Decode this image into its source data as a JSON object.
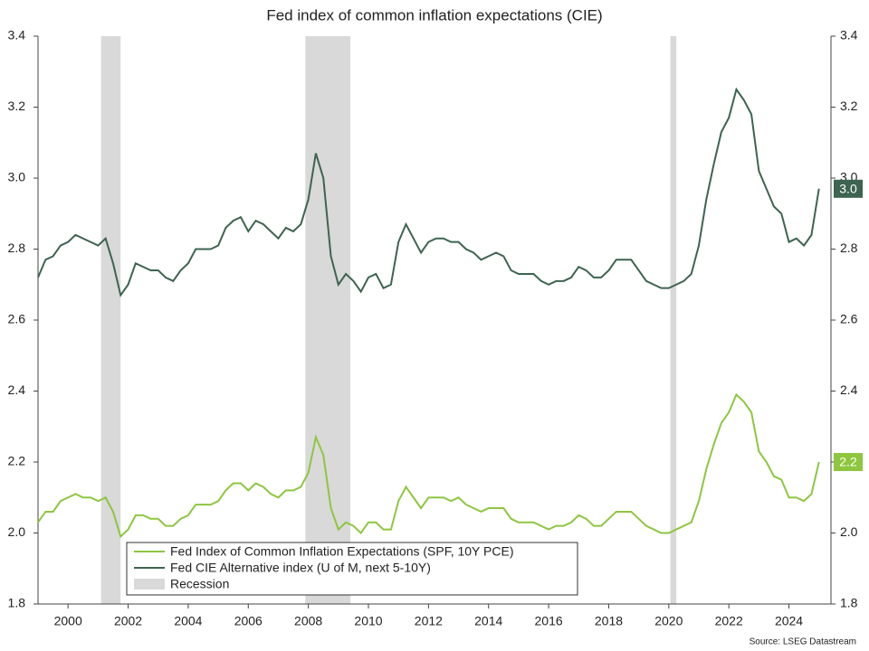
{
  "chart_data": {
    "type": "line",
    "title": "Fed index of common inflation expectations (CIE)",
    "source": "Source: LSEG Datastream",
    "x": [
      1999,
      1999.25,
      1999.5,
      1999.75,
      2000,
      2000.25,
      2000.5,
      2000.75,
      2001,
      2001.25,
      2001.5,
      2001.75,
      2002,
      2002.25,
      2002.5,
      2002.75,
      2003,
      2003.25,
      2003.5,
      2003.75,
      2004,
      2004.25,
      2004.5,
      2004.75,
      2005,
      2005.25,
      2005.5,
      2005.75,
      2006,
      2006.25,
      2006.5,
      2006.75,
      2007,
      2007.25,
      2007.5,
      2007.75,
      2008,
      2008.25,
      2008.5,
      2008.75,
      2009,
      2009.25,
      2009.5,
      2009.75,
      2010,
      2010.25,
      2010.5,
      2010.75,
      2011,
      2011.25,
      2011.5,
      2011.75,
      2012,
      2012.25,
      2012.5,
      2012.75,
      2013,
      2013.25,
      2013.5,
      2013.75,
      2014,
      2014.25,
      2014.5,
      2014.75,
      2015,
      2015.25,
      2015.5,
      2015.75,
      2016,
      2016.25,
      2016.5,
      2016.75,
      2017,
      2017.25,
      2017.5,
      2017.75,
      2018,
      2018.25,
      2018.5,
      2018.75,
      2019,
      2019.25,
      2019.5,
      2019.75,
      2020,
      2020.25,
      2020.5,
      2020.75,
      2021,
      2021.25,
      2021.5,
      2021.75,
      2022,
      2022.25,
      2022.5,
      2022.75,
      2023,
      2023.25,
      2023.5,
      2023.75,
      2024,
      2024.25,
      2024.5,
      2024.75,
      2025
    ],
    "series": [
      {
        "name": "Fed Index of Common Inflation Expectations (SPF, 10Y PCE)",
        "color": "#8dc63f",
        "end_label": "2.2",
        "values": [
          2.03,
          2.06,
          2.06,
          2.09,
          2.1,
          2.11,
          2.1,
          2.1,
          2.09,
          2.1,
          2.06,
          1.99,
          2.01,
          2.05,
          2.05,
          2.04,
          2.04,
          2.02,
          2.02,
          2.04,
          2.05,
          2.08,
          2.08,
          2.08,
          2.09,
          2.12,
          2.14,
          2.14,
          2.12,
          2.14,
          2.13,
          2.11,
          2.1,
          2.12,
          2.12,
          2.13,
          2.17,
          2.27,
          2.22,
          2.07,
          2.01,
          2.03,
          2.02,
          2.0,
          2.03,
          2.03,
          2.01,
          2.01,
          2.09,
          2.13,
          2.1,
          2.07,
          2.1,
          2.1,
          2.1,
          2.09,
          2.1,
          2.08,
          2.07,
          2.06,
          2.07,
          2.07,
          2.07,
          2.04,
          2.03,
          2.03,
          2.03,
          2.02,
          2.01,
          2.02,
          2.02,
          2.03,
          2.05,
          2.04,
          2.02,
          2.02,
          2.04,
          2.06,
          2.06,
          2.06,
          2.04,
          2.02,
          2.01,
          2.0,
          2.0,
          2.01,
          2.02,
          2.03,
          2.09,
          2.18,
          2.25,
          2.31,
          2.34,
          2.39,
          2.37,
          2.34,
          2.23,
          2.2,
          2.16,
          2.15,
          2.1,
          2.1,
          2.09,
          2.11,
          2.2
        ]
      },
      {
        "name": "Fed CIE Alternative index (U of M, next 5-10Y)",
        "color": "#3d6450",
        "end_label": "3.0",
        "values": [
          2.72,
          2.77,
          2.78,
          2.81,
          2.82,
          2.84,
          2.83,
          2.82,
          2.81,
          2.83,
          2.76,
          2.67,
          2.7,
          2.76,
          2.75,
          2.74,
          2.74,
          2.72,
          2.71,
          2.74,
          2.76,
          2.8,
          2.8,
          2.8,
          2.81,
          2.86,
          2.88,
          2.89,
          2.85,
          2.88,
          2.87,
          2.85,
          2.83,
          2.86,
          2.85,
          2.87,
          2.94,
          3.07,
          3.0,
          2.78,
          2.7,
          2.73,
          2.71,
          2.68,
          2.72,
          2.73,
          2.69,
          2.7,
          2.82,
          2.87,
          2.83,
          2.79,
          2.82,
          2.83,
          2.83,
          2.82,
          2.82,
          2.8,
          2.79,
          2.77,
          2.78,
          2.79,
          2.78,
          2.74,
          2.73,
          2.73,
          2.73,
          2.71,
          2.7,
          2.71,
          2.71,
          2.72,
          2.75,
          2.74,
          2.72,
          2.72,
          2.74,
          2.77,
          2.77,
          2.77,
          2.74,
          2.71,
          2.7,
          2.69,
          2.69,
          2.7,
          2.71,
          2.73,
          2.81,
          2.94,
          3.04,
          3.13,
          3.17,
          3.25,
          3.22,
          3.18,
          3.02,
          2.97,
          2.92,
          2.9,
          2.82,
          2.83,
          2.81,
          2.84,
          2.97
        ]
      }
    ],
    "recession_label": "Recession",
    "recession_color": "#d9d9d9",
    "recessions": [
      [
        2001.1,
        2001.75
      ],
      [
        2007.9,
        2009.4
      ],
      [
        2020.05,
        2020.25
      ]
    ],
    "xlim": [
      1999,
      2025.4
    ],
    "xticks": [
      2000,
      2002,
      2004,
      2006,
      2008,
      2010,
      2012,
      2014,
      2016,
      2018,
      2020,
      2022,
      2024
    ],
    "ylim": [
      1.8,
      3.4
    ],
    "yticks": [
      1.8,
      {
        "value": 2,
        "label": "2.0"
      },
      2.2,
      2.4,
      2.6,
      2.8,
      {
        "value": 3,
        "label": "3.0"
      },
      3.2,
      3.4
    ],
    "y2lim": [
      1.8,
      3.4
    ],
    "y2ticks": [
      1.8,
      {
        "value": 2,
        "label": "2.0"
      },
      2.2,
      2.4,
      2.6,
      2.8,
      {
        "value": 3,
        "label": "3.0"
      },
      3.2,
      3.4
    ],
    "legend": "bottom-left"
  }
}
